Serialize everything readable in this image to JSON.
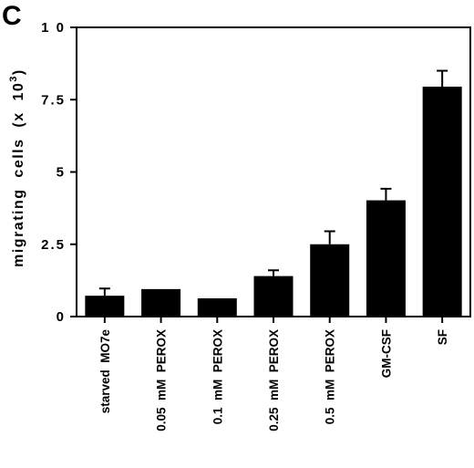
{
  "panel_label": "C",
  "chart_data": {
    "type": "bar",
    "title": "",
    "xlabel": "",
    "ylabel": {
      "text": "migrating  cells  (x  10",
      "superscript": "3",
      "close": ")"
    },
    "ylim": [
      0,
      10
    ],
    "yticks": [
      0,
      2.5,
      5,
      7.5,
      10
    ],
    "ytick_labels": [
      "0",
      "2.5",
      "5",
      "7.5",
      "1 0"
    ],
    "categories": [
      "starved  MO7e",
      "0.05  mM  PEROX",
      "0.1  mM  PEROX",
      "0.25  mM  PEROX",
      "0.5  mM  PEROX",
      "GM-CSF",
      "SF"
    ],
    "values": [
      0.72,
      0.95,
      0.63,
      1.4,
      2.5,
      4.02,
      7.95
    ],
    "errors": [
      0.25,
      0.0,
      0.0,
      0.2,
      0.45,
      0.4,
      0.55
    ],
    "bar_color": "#000000",
    "grid": false
  }
}
